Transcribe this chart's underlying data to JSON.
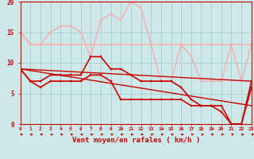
{
  "xlabel": "Vent moyen/en rafales ( km/h )",
  "xlim": [
    0,
    23
  ],
  "ylim": [
    0,
    20
  ],
  "background_color": "#cce8e8",
  "grid_color": "#aacccc",
  "lines": [
    {
      "x": [
        0,
        1,
        2,
        3,
        4,
        5,
        6,
        7,
        8,
        9,
        10,
        11,
        12,
        13,
        14,
        15,
        16,
        17,
        18,
        19,
        20,
        21,
        22,
        23
      ],
      "y": [
        15,
        13,
        13,
        13,
        13,
        13,
        13,
        13,
        13,
        13,
        13,
        13,
        13,
        13,
        13,
        13,
        13,
        13,
        13,
        13,
        13,
        13,
        13,
        13
      ],
      "color": "#ffaaaa",
      "lw": 1.0,
      "marker": "s",
      "ms": 2.0
    },
    {
      "x": [
        0,
        1,
        2,
        3,
        4,
        5,
        6,
        7,
        8,
        9,
        10,
        11,
        12,
        13,
        14,
        15,
        16,
        17,
        18,
        19,
        20,
        21,
        22,
        23
      ],
      "y": [
        15,
        13,
        13,
        15,
        16,
        16,
        15,
        11,
        17,
        18,
        17,
        20,
        19,
        13,
        7,
        7,
        13,
        11,
        7,
        7,
        7,
        13,
        7,
        13
      ],
      "color": "#ffaaaa",
      "lw": 1.0,
      "marker": "s",
      "ms": 2.0
    },
    {
      "x": [
        0,
        1,
        2,
        3,
        4,
        5,
        6,
        7,
        8,
        9,
        10,
        11,
        12,
        13,
        14,
        15,
        16,
        17,
        18,
        19,
        20,
        21,
        22,
        23
      ],
      "y": [
        9,
        7,
        7,
        8,
        8,
        8,
        8,
        11,
        11,
        9,
        9,
        8,
        7,
        7,
        7,
        7,
        6,
        4,
        3,
        3,
        2,
        0,
        0,
        7
      ],
      "color": "#cc0000",
      "lw": 1.2,
      "marker": "s",
      "ms": 2.0
    },
    {
      "x": [
        0,
        1,
        2,
        3,
        4,
        5,
        6,
        7,
        8,
        9,
        10,
        11,
        12,
        13,
        14,
        15,
        16,
        17,
        18,
        19,
        20,
        21,
        22,
        23
      ],
      "y": [
        9,
        7,
        6,
        7,
        7,
        7,
        7,
        8,
        8,
        7,
        4,
        4,
        4,
        4,
        4,
        4,
        4,
        3,
        3,
        3,
        3,
        0,
        0,
        6
      ],
      "color": "#cc0000",
      "lw": 1.2,
      "marker": "s",
      "ms": 2.0
    },
    {
      "x": [
        0,
        23
      ],
      "y": [
        9,
        7
      ],
      "color": "#cc0000",
      "lw": 1.0,
      "marker": null,
      "ms": 0
    },
    {
      "x": [
        0,
        23
      ],
      "y": [
        9,
        3
      ],
      "color": "#cc0000",
      "lw": 1.0,
      "marker": null,
      "ms": 0
    }
  ],
  "yticks": [
    0,
    5,
    10,
    15,
    20
  ],
  "xticks": [
    0,
    1,
    2,
    3,
    4,
    5,
    6,
    7,
    8,
    9,
    10,
    11,
    12,
    13,
    14,
    15,
    16,
    17,
    18,
    19,
    20,
    21,
    22,
    23
  ],
  "xtick_labels": [
    "0",
    "1",
    "2",
    "3",
    "4",
    "5",
    "6",
    "7",
    "8",
    "9",
    "10",
    "11",
    "12",
    "13",
    "14",
    "15",
    "16",
    "17",
    "18",
    "19",
    "20",
    "21",
    "22",
    "23"
  ]
}
